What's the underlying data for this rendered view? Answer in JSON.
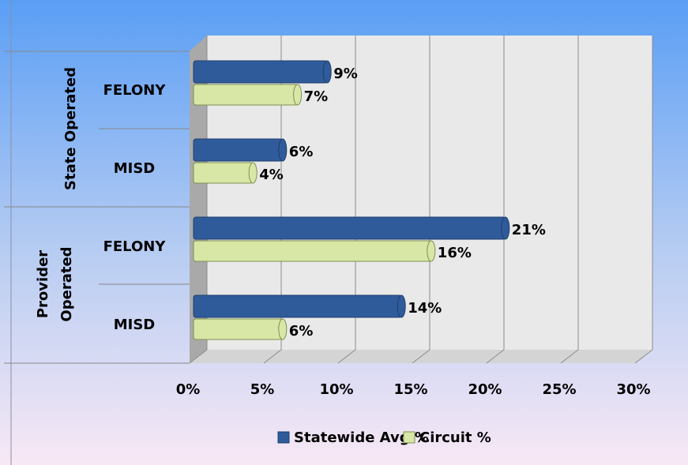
{
  "chart_data": {
    "type": "bar",
    "groups": [
      "State Operated",
      "Provider Operated"
    ],
    "categories": [
      "FELONY",
      "MISD",
      "FELONY",
      "MISD"
    ],
    "series": [
      {
        "name": "Statewide Avg %",
        "color": "#2f5b9a",
        "values": [
          9,
          6,
          21,
          14
        ],
        "value_labels": [
          "9%",
          "6%",
          "21%",
          "14%"
        ]
      },
      {
        "name": "Circuit %",
        "color": "#d8e7a6",
        "values": [
          7,
          4,
          16,
          6
        ],
        "value_labels": [
          "7%",
          "4%",
          "16%",
          "6%"
        ]
      }
    ],
    "xlim": [
      0,
      30
    ],
    "xticks": [
      {
        "value": 0,
        "label": "0%"
      },
      {
        "value": 5,
        "label": "5%"
      },
      {
        "value": 10,
        "label": "10%"
      },
      {
        "value": 15,
        "label": "15%"
      },
      {
        "value": 20,
        "label": "20%"
      },
      {
        "value": 25,
        "label": "25%"
      },
      {
        "value": 30,
        "label": "30%"
      }
    ],
    "grid": true,
    "legend": "bottom"
  }
}
